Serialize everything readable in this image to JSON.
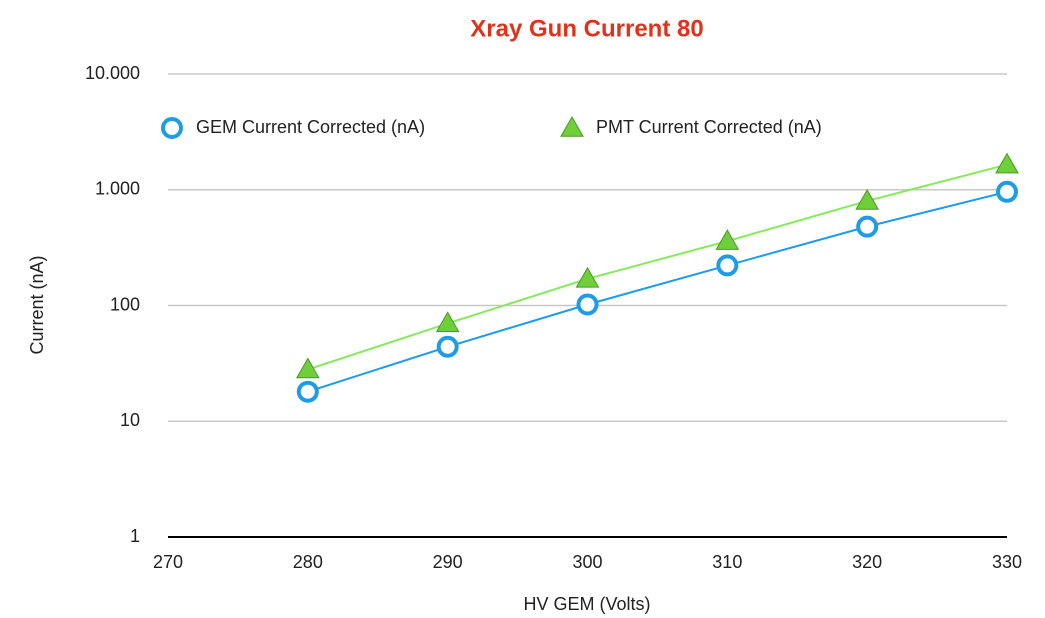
{
  "chart_data": {
    "type": "scatter",
    "title": "Xray Gun Current 80",
    "x_label": "HV GEM (Volts)",
    "y_label": "Current (nA)",
    "x": [
      280,
      290,
      300,
      310,
      320,
      330
    ],
    "series": [
      {
        "name": "GEM Current Corrected (nA)",
        "color": "#1e9ce8",
        "marker": "circle",
        "values": [
          18,
          44,
          102,
          222,
          480,
          960
        ]
      },
      {
        "name": "PMT Current Corrected (nA)",
        "color": "#6fcf3a",
        "marker": "triangle",
        "values": [
          28,
          70,
          170,
          360,
          800,
          1650
        ]
      }
    ],
    "xlim": [
      270,
      330
    ],
    "xticks": [
      270,
      280,
      290,
      300,
      310,
      320,
      330
    ],
    "ylim": [
      1,
      10000
    ],
    "yticks": [
      1,
      10,
      100,
      {
        "value": 1000,
        "label": "1.000"
      },
      {
        "value": 10000,
        "label": "10.000"
      }
    ],
    "log_y": true,
    "grid": true,
    "legend": "top"
  }
}
